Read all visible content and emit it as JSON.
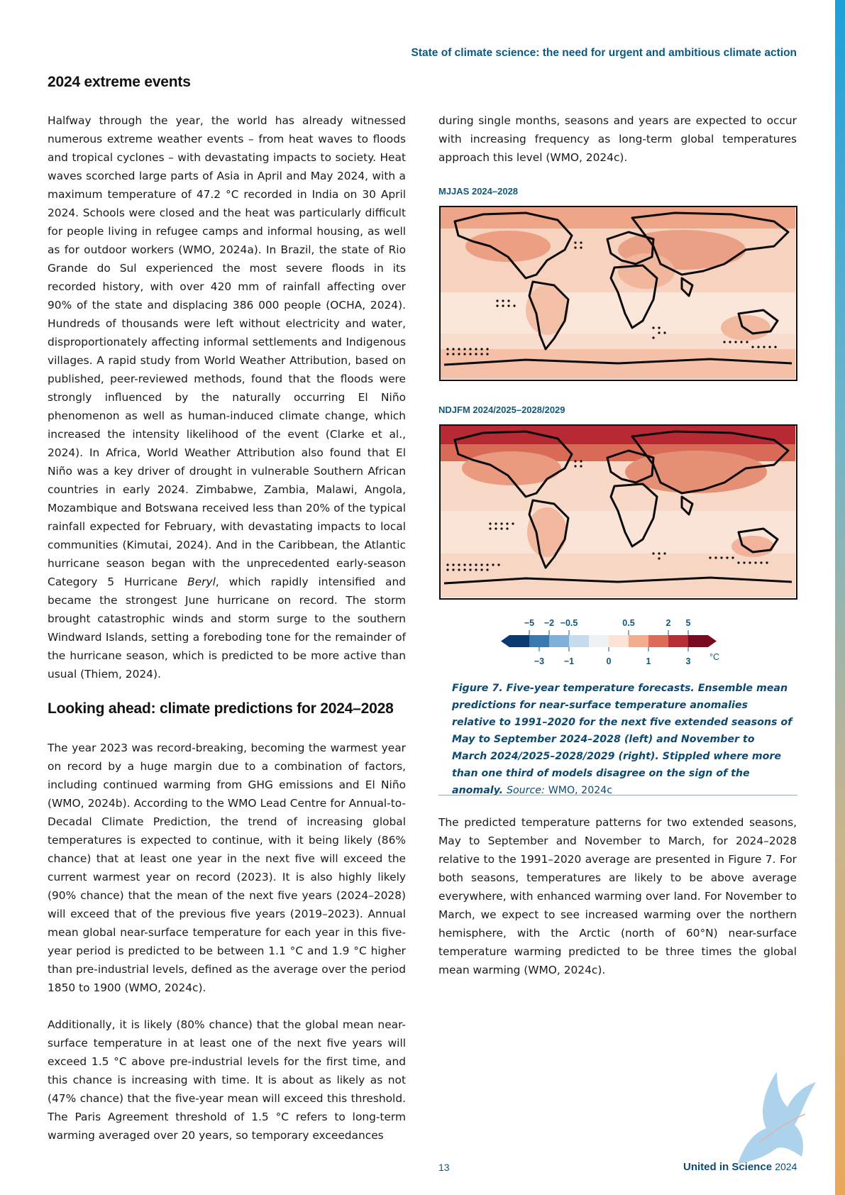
{
  "header": {
    "running_title": "State of climate science: the need for urgent and ambitious climate action"
  },
  "sections": {
    "extreme_events": {
      "heading": "2024 extreme events",
      "paragraph_1_before_italic": "Halfway through the year, the world has already witnessed numerous extreme weather events – from heat waves to floods and tropical cyclones – with devastating impacts to society. Heat waves scorched large parts of Asia in April and May 2024, with a maximum temperature of 47.2 °C recorded in India on 30 April 2024. Schools were closed and the heat was particularly difficult for people living in refugee camps and informal housing, as well as for outdoor workers (WMO, 2024a). In Brazil, the state of Rio Grande do Sul experienced the most severe floods in its recorded history, with over 420 mm of rainfall affecting over 90% of the state and displacing 386 000 people (OCHA, 2024). Hundreds of thousands were left without electricity and water, disproportionately affecting informal settlements and Indigenous villages. A rapid study from World Weather Attribution, based on published, peer-reviewed methods, found that the floods were strongly influenced by the naturally occurring El Niño phenomenon as well as human-induced climate change, which increased the intensity likelihood of the event (Clarke et al., 2024). In Africa, World Weather Attribution also found that El Niño was a key driver of drought in vulnerable Southern African countries in early 2024. Zimbabwe, Zambia, Malawi, Angola, Mozambique and Botswana received less than 20% of the typical rainfall expected for February, with devastating impacts to local communities (Kimutai, 2024). And in the Caribbean, the Atlantic hurricane season began with the unprecedented early-season Category 5 Hurricane",
      "paragraph_1_italic": "Beryl",
      "paragraph_1_after_italic": ", which rapidly intensified and became the strongest June hurricane on record. The storm brought catastrophic winds and storm surge to the southern Windward Islands, setting a foreboding tone for the remainder of the hurricane season, which is predicted to be more active than usual (Thiem, 2024)."
    },
    "looking_ahead": {
      "heading": "Looking ahead: climate predictions for 2024–2028",
      "paragraph_1": "The year 2023 was record-breaking, becoming the warmest year on record by a huge margin due to a combination of factors, including continued warming from GHG emissions and El Niño (WMO, 2024b). According to the WMO Lead Centre for Annual-to-Decadal Climate Prediction, the trend of increasing global temperatures is expected to continue, with it being likely (86% chance) that at least one year in the next five will exceed the current warmest year on record (2023). It is also highly likely (90% chance) that the mean of the next five years (2024–2028) will exceed that of the previous five years (2019–2023). Annual mean global near-surface temperature for each year in this five-year period is predicted to be between 1.1 °C and 1.9 °C higher than pre-industrial levels, defined as the average over the period 1850 to 1900 (WMO, 2024c).",
      "paragraph_2": "Additionally, it is likely (80% chance) that the global mean near-surface temperature in at least one of the next five years will exceed 1.5 °C above pre-industrial levels for the first time, and this chance is increasing with time. It is about as likely as not (47% chance) that the five-year mean will exceed this threshold. The Paris Agreement threshold of 1.5 °C refers to long-term warming averaged over 20 years, so temporary exceedances",
      "paragraph_2_cont": "during single months, seasons and years are expected to occur with increasing frequency as long-term global temperatures approach this level (WMO, 2024c).",
      "paragraph_3": "The predicted temperature patterns for two extended seasons, May to September and November to March, for 2024–2028 relative to the 1991–2020 average are presented in Figure 7. For both seasons, temperatures are likely to be above average everywhere, with enhanced warming over land. For November to March, we expect to see increased warming over the northern hemisphere, with the Arctic (north of 60°N) near-surface temperature warming predicted to be three times the global mean warming (WMO, 2024c)."
    }
  },
  "figure": {
    "map_1_label": "MJJAS 2024–2028",
    "map_2_label": "NDJFM 2024/2025–2028/2029",
    "legend": {
      "upper_ticks": [
        "−5",
        "−2",
        "−0.5",
        "0.5",
        "2",
        "5"
      ],
      "lower_ticks": [
        "−3",
        "−1",
        "0",
        "1",
        "3"
      ],
      "unit": "°C",
      "colors": [
        "#0b3a73",
        "#3a78b0",
        "#7eb0d8",
        "#c5dcee",
        "#eef2f5",
        "#fbe3d6",
        "#f2ad8f",
        "#de6a58",
        "#b82e35",
        "#7a0a22"
      ]
    },
    "caption_main": "Figure 7. Five-year temperature forecasts. Ensemble mean predictions for near-surface temperature anomalies relative to 1991–2020 for the next five extended seasons of May to September 2024–2028 (left) and November to March 2024/2025–2028/2029 (right). Stippled where more than one third of models disagree on the sign of the anomaly.",
    "caption_source_label": "Source:",
    "caption_source": "WMO, 2024c"
  },
  "footer": {
    "page_number": "13",
    "title": "United in Science",
    "year": "2024"
  }
}
